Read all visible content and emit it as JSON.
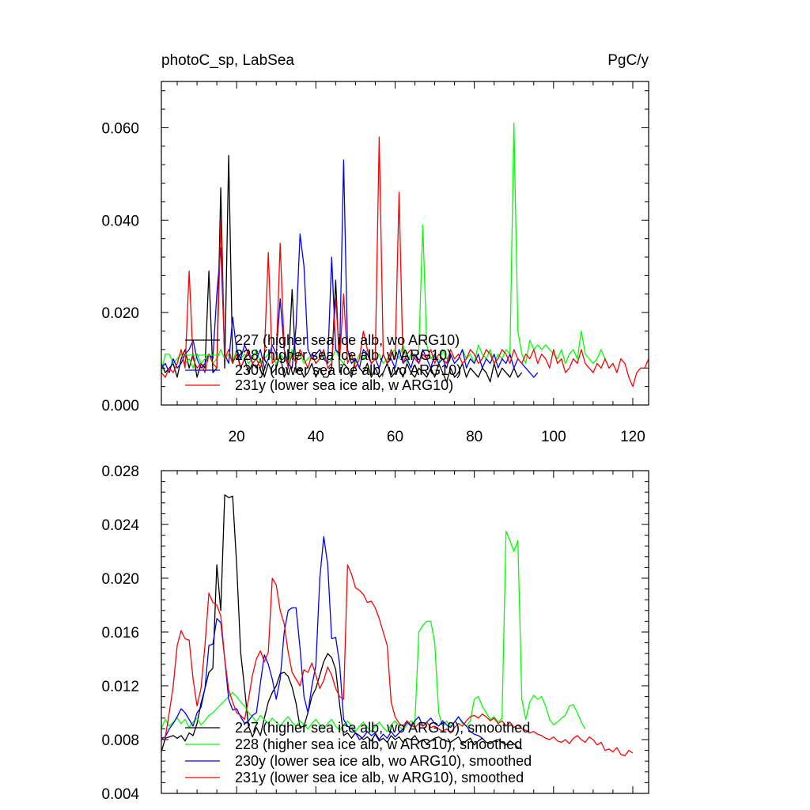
{
  "chart_data": [
    {
      "type": "line",
      "title_left": "photoC_sp, LabSea",
      "title_right": "PgC/y",
      "xlim": [
        1,
        124
      ],
      "ylim": [
        0,
        0.07
      ],
      "x_ticks": [
        20,
        40,
        60,
        80,
        100,
        120
      ],
      "x_tick_labels": [
        "20",
        "40",
        "60",
        "80",
        "100",
        "120"
      ],
      "y_ticks": [
        0,
        0.02,
        0.04,
        0.06
      ],
      "y_tick_labels": [
        "0.000",
        "0.020",
        "0.040",
        "0.060"
      ],
      "legend_position": "bottom-left",
      "series": [
        {
          "name": "227 (higher sea ice alb, wo ARG10)",
          "color": "#000000",
          "values": [
            0.009,
            0.007,
            0.008,
            0.009,
            0.006,
            0.01,
            0.012,
            0.008,
            0.011,
            0.006,
            0.009,
            0.008,
            0.029,
            0.007,
            0.008,
            0.047,
            0.008,
            0.054,
            0.009,
            0.012,
            0.008,
            0.01,
            0.007,
            0.009,
            0.008,
            0.01,
            0.006,
            0.009,
            0.007,
            0.008,
            0.011,
            0.006,
            0.008,
            0.025,
            0.007,
            0.008,
            0.006,
            0.007,
            0.009,
            0.006,
            0.008,
            0.006,
            0.006,
            0.008,
            0.027,
            0.007,
            0.009,
            0.008,
            0.006,
            0.01,
            0.008,
            0.007,
            0.009,
            0.006,
            0.008,
            0.006,
            0.007,
            0.009,
            0.006,
            0.007,
            0.008,
            0.006,
            0.009,
            0.007,
            0.006,
            0.008,
            0.007,
            0.006,
            0.008,
            0.006,
            0.009,
            0.007,
            0.005,
            0.008,
            0.006,
            0.007,
            0.009,
            0.006,
            0.008,
            0.007,
            0.006,
            0.008,
            0.007,
            0.005,
            0.009,
            0.006,
            0.008,
            0.007,
            0.006,
            0.008,
            0.006,
            0.007
          ]
        },
        {
          "name": "228 (higher sea ice alb, w ARG10)",
          "color": "#00ff00",
          "values": [
            0.007,
            0.011,
            0.011,
            0.009,
            0.01,
            0.011,
            0.009,
            0.01,
            0.008,
            0.011,
            0.009,
            0.01,
            0.011,
            0.009,
            0.01,
            0.012,
            0.01,
            0.011,
            0.009,
            0.012,
            0.01,
            0.011,
            0.009,
            0.01,
            0.012,
            0.009,
            0.01,
            0.011,
            0.01,
            0.009,
            0.011,
            0.01,
            0.009,
            0.012,
            0.01,
            0.011,
            0.009,
            0.01,
            0.011,
            0.009,
            0.01,
            0.011,
            0.009,
            0.01,
            0.012,
            0.01,
            0.009,
            0.011,
            0.01,
            0.009,
            0.011,
            0.01,
            0.012,
            0.009,
            0.01,
            0.011,
            0.009,
            0.01,
            0.011,
            0.012,
            0.01,
            0.013,
            0.009,
            0.011,
            0.01,
            0.012,
            0.039,
            0.013,
            0.01,
            0.011,
            0.009,
            0.012,
            0.01,
            0.011,
            0.009,
            0.01,
            0.012,
            0.01,
            0.011,
            0.009,
            0.013,
            0.011,
            0.01,
            0.012,
            0.009,
            0.011,
            0.01,
            0.012,
            0.011,
            0.061,
            0.016,
            0.011,
            0.009,
            0.014,
            0.012,
            0.013,
            0.012,
            0.013,
            0.012,
            0.011,
            0.01,
            0.012,
            0.009,
            0.011,
            0.012,
            0.01,
            0.016,
            0.011,
            0.01,
            0.009,
            0.01,
            0.012,
            0.01,
            0.008,
            0.009
          ]
        },
        {
          "name": "230y (lower sea ice alb, wo ARG10)",
          "color": "#0000ff",
          "values": [
            0.008,
            0.009,
            0.007,
            0.01,
            0.008,
            0.009,
            0.011,
            0.012,
            0.014,
            0.01,
            0.008,
            0.009,
            0.011,
            0.01,
            0.024,
            0.034,
            0.011,
            0.009,
            0.019,
            0.012,
            0.01,
            0.013,
            0.011,
            0.009,
            0.01,
            0.012,
            0.008,
            0.01,
            0.013,
            0.011,
            0.023,
            0.012,
            0.009,
            0.008,
            0.017,
            0.037,
            0.03,
            0.012,
            0.01,
            0.011,
            0.012,
            0.01,
            0.009,
            0.032,
            0.012,
            0.011,
            0.053,
            0.012,
            0.009,
            0.01,
            0.008,
            0.012,
            0.011,
            0.009,
            0.01,
            0.008,
            0.011,
            0.009,
            0.01,
            0.008,
            0.012,
            0.009,
            0.01,
            0.008,
            0.011,
            0.009,
            0.012,
            0.01,
            0.008,
            0.011,
            0.009,
            0.01,
            0.008,
            0.011,
            0.009,
            0.01,
            0.012,
            0.008,
            0.01,
            0.009,
            0.011,
            0.008,
            0.01,
            0.009,
            0.011,
            0.008,
            0.01,
            0.009,
            0.011,
            0.008,
            0.01,
            0.009,
            0.008,
            0.007,
            0.006,
            0.007
          ]
        },
        {
          "name": "231y (lower sea ice alb, w ARG10)",
          "color": "#ff0000",
          "values": [
            0.007,
            0.006,
            0.008,
            0.007,
            0.009,
            0.012,
            0.008,
            0.029,
            0.01,
            0.008,
            0.009,
            0.007,
            0.011,
            0.009,
            0.008,
            0.04,
            0.01,
            0.012,
            0.009,
            0.011,
            0.008,
            0.01,
            0.012,
            0.009,
            0.01,
            0.008,
            0.011,
            0.033,
            0.009,
            0.01,
            0.035,
            0.012,
            0.008,
            0.011,
            0.009,
            0.012,
            0.01,
            0.008,
            0.011,
            0.009,
            0.01,
            0.012,
            0.008,
            0.009,
            0.023,
            0.01,
            0.024,
            0.009,
            0.011,
            0.008,
            0.01,
            0.016,
            0.012,
            0.009,
            0.01,
            0.058,
            0.011,
            0.009,
            0.012,
            0.01,
            0.046,
            0.009,
            0.011,
            0.012,
            0.01,
            0.009,
            0.011,
            0.01,
            0.012,
            0.009,
            0.011,
            0.01,
            0.009,
            0.012,
            0.01,
            0.011,
            0.009,
            0.01,
            0.012,
            0.011,
            0.009,
            0.01,
            0.012,
            0.011,
            0.009,
            0.01,
            0.012,
            0.011,
            0.009,
            0.012,
            0.01,
            0.009,
            0.011,
            0.01,
            0.012,
            0.009,
            0.011,
            0.01,
            0.008,
            0.012,
            0.009,
            0.01,
            0.007,
            0.008,
            0.01,
            0.009,
            0.012,
            0.009,
            0.008,
            0.007,
            0.009,
            0.008,
            0.01,
            0.008,
            0.009,
            0.007,
            0.01,
            0.009,
            0.006,
            0.004,
            0.007,
            0.008,
            0.008,
            0.01
          ]
        }
      ]
    },
    {
      "type": "line",
      "xlim": [
        1,
        124
      ],
      "ylim": [
        0.004,
        0.028
      ],
      "y_ticks": [
        0.004,
        0.008,
        0.012,
        0.016,
        0.02,
        0.024,
        0.028
      ],
      "y_tick_labels": [
        "0.004",
        "0.008",
        "0.012",
        "0.016",
        "0.020",
        "0.024",
        "0.028"
      ],
      "legend_position": "bottom-left",
      "series": [
        {
          "name": "227 (higher sea ice alb, wo ARG10), smoothed",
          "color": "#000000",
          "values": [
            0.0071,
            0.0081,
            0.0082,
            0.0083,
            0.0081,
            0.0083,
            0.0079,
            0.0085,
            0.0083,
            0.0092,
            0.0107,
            0.0118,
            0.013,
            0.0133,
            0.021,
            0.0176,
            0.0262,
            0.026,
            0.0261,
            0.021,
            0.0145,
            0.0118,
            0.009,
            0.0082,
            0.0089,
            0.0083,
            0.0096,
            0.0108,
            0.0115,
            0.012,
            0.0129,
            0.013,
            0.0127,
            0.0119,
            0.0107,
            0.0089,
            0.009,
            0.01,
            0.0112,
            0.0118,
            0.0128,
            0.0138,
            0.0144,
            0.0141,
            0.0132,
            0.0106,
            0.0083,
            0.0085,
            0.0081,
            0.0085,
            0.0083,
            0.008,
            0.0082,
            0.0079,
            0.0084,
            0.0079,
            0.0081,
            0.0078,
            0.0083,
            0.008,
            0.0082,
            0.0078,
            0.0081,
            0.008,
            0.0083,
            0.0078,
            0.008,
            0.0077,
            0.0079,
            0.0081,
            0.0082,
            0.008,
            0.0079,
            0.0078,
            0.008,
            0.0082,
            0.0077,
            0.0079,
            0.0081,
            0.0076,
            0.0079,
            0.0081,
            0.0078,
            0.0077,
            0.0079,
            0.008,
            0.0078,
            0.0076,
            0.0079,
            0.0077,
            0.0074,
            0.0073
          ]
        },
        {
          "name": "228 (higher sea ice alb, w ARG10), smoothed",
          "color": "#00ff00",
          "values": [
            0.0088,
            0.0095,
            0.009,
            0.0093,
            0.0096,
            0.0092,
            0.0095,
            0.0089,
            0.0093,
            0.0096,
            0.0091,
            0.0094,
            0.0098,
            0.01,
            0.0103,
            0.0106,
            0.0109,
            0.0112,
            0.0115,
            0.0112,
            0.0108,
            0.0105,
            0.01,
            0.0097,
            0.0093,
            0.0098,
            0.0095,
            0.0092,
            0.0096,
            0.0093,
            0.009,
            0.0094,
            0.0097,
            0.0093,
            0.009,
            0.0094,
            0.0091,
            0.0088,
            0.0092,
            0.0095,
            0.0091,
            0.0088,
            0.0092,
            0.0095,
            0.009,
            0.0087,
            0.0091,
            0.0094,
            0.009,
            0.0086,
            0.009,
            0.0093,
            0.0089,
            0.0086,
            0.009,
            0.0093,
            0.0089,
            0.0086,
            0.0091,
            0.0094,
            0.009,
            0.0087,
            0.0091,
            0.0094,
            0.0092,
            0.016,
            0.0165,
            0.0168,
            0.0168,
            0.0152,
            0.01,
            0.009,
            0.0094,
            0.009,
            0.0093,
            0.0097,
            0.0092,
            0.009,
            0.0094,
            0.011,
            0.0112,
            0.0105,
            0.01,
            0.0095,
            0.0097,
            0.0093,
            0.0096,
            0.0235,
            0.0228,
            0.022,
            0.0228,
            0.011,
            0.0095,
            0.0108,
            0.0113,
            0.011,
            0.0112,
            0.0105,
            0.0095,
            0.0091,
            0.0093,
            0.0096,
            0.0098,
            0.0105,
            0.0106,
            0.01,
            0.0093,
            0.0088
          ]
        },
        {
          "name": "230y (lower sea ice alb, wo ARG10), smoothed",
          "color": "#0000ff",
          "values": [
            0.0081,
            0.0082,
            0.0088,
            0.0092,
            0.0097,
            0.0103,
            0.01,
            0.0095,
            0.009,
            0.01,
            0.0104,
            0.0118,
            0.015,
            0.0151,
            0.017,
            0.0167,
            0.014,
            0.011,
            0.0102,
            0.0103,
            0.0097,
            0.0092,
            0.0094,
            0.0098,
            0.01,
            0.0122,
            0.0143,
            0.0136,
            0.0125,
            0.011,
            0.0125,
            0.016,
            0.0176,
            0.0178,
            0.0178,
            0.0148,
            0.0112,
            0.01,
            0.012,
            0.0135,
            0.02,
            0.0231,
            0.021,
            0.0155,
            0.0156,
            0.0136,
            0.0095,
            0.009,
            0.0088,
            0.0085,
            0.008,
            0.0082,
            0.0086,
            0.0083,
            0.0085,
            0.008,
            0.0084,
            0.0081,
            0.0086,
            0.0082,
            0.0085,
            0.0088,
            0.0093,
            0.009,
            0.0094,
            0.0097,
            0.009,
            0.0093,
            0.0096,
            0.0092,
            0.009,
            0.0094,
            0.0091,
            0.0089,
            0.0093,
            0.0097,
            0.0093,
            0.009,
            0.0086,
            0.0084,
            0.0083,
            0.0081
          ]
        },
        {
          "name": "231y (lower sea ice alb, w ARG10), smoothed",
          "color": "#ff0000",
          "values": [
            0.008,
            0.0082,
            0.01,
            0.012,
            0.015,
            0.0161,
            0.0155,
            0.0154,
            0.0125,
            0.0105,
            0.0118,
            0.015,
            0.0189,
            0.0182,
            0.018,
            0.0172,
            0.014,
            0.0117,
            0.0108,
            0.01,
            0.0098,
            0.0095,
            0.011,
            0.0128,
            0.014,
            0.0146,
            0.0138,
            0.0145,
            0.02,
            0.0195,
            0.0176,
            0.0166,
            0.0145,
            0.013,
            0.0125,
            0.012,
            0.0132,
            0.013,
            0.0137,
            0.0128,
            0.0118,
            0.0124,
            0.0134,
            0.0128,
            0.0118,
            0.0112,
            0.011,
            0.021,
            0.0203,
            0.0193,
            0.0191,
            0.0188,
            0.0182,
            0.0183,
            0.0178,
            0.017,
            0.016,
            0.015,
            0.0108,
            0.0097,
            0.0092,
            0.009,
            0.0094,
            0.0091,
            0.0089,
            0.0092,
            0.009,
            0.0093,
            0.0089,
            0.009,
            0.0088,
            0.0086,
            0.0088,
            0.0085,
            0.0089,
            0.0092,
            0.009,
            0.0094,
            0.0097,
            0.0098,
            0.0096,
            0.0099,
            0.0097,
            0.0094,
            0.0096,
            0.0092,
            0.0094,
            0.009,
            0.0093,
            0.0089,
            0.0091,
            0.0088,
            0.0087,
            0.0085,
            0.0086,
            0.0084,
            0.0083,
            0.0081,
            0.008,
            0.0082,
            0.0079,
            0.0078,
            0.008,
            0.0077,
            0.0081,
            0.0083,
            0.008,
            0.0078,
            0.0082,
            0.008,
            0.0076,
            0.0078,
            0.0072,
            0.0073,
            0.0071,
            0.0074,
            0.0069,
            0.0068,
            0.0072,
            0.007
          ]
        }
      ]
    }
  ]
}
